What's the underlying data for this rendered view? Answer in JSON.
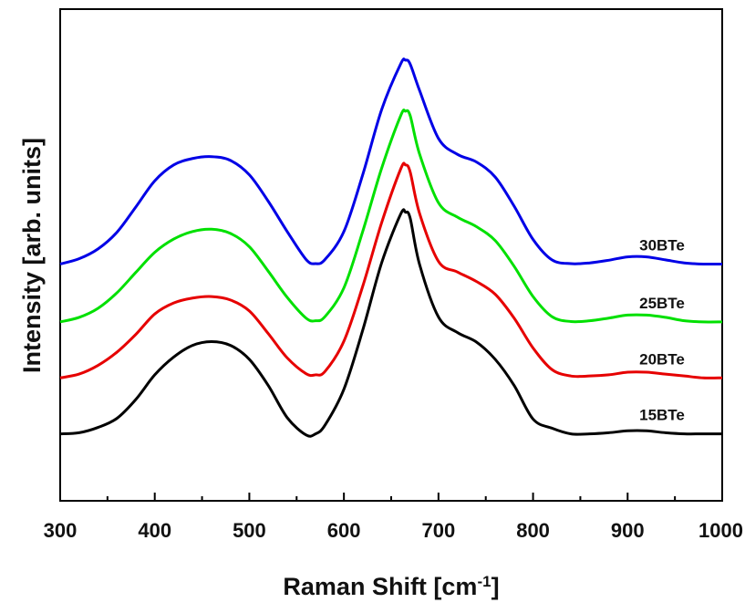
{
  "chart_data": {
    "type": "line",
    "title": "",
    "xlabel": "Raman Shift [cm",
    "xlabel_sup": "-1",
    "xlabel_suffix": "]",
    "ylabel": "Intensity [arb. units]",
    "xlim": [
      300,
      1000
    ],
    "ylim": [
      0,
      1.3
    ],
    "x_ticks": [
      300,
      400,
      500,
      600,
      700,
      800,
      900,
      1000
    ],
    "x_tick_labels": [
      "300",
      "400",
      "500",
      "600",
      "700",
      "800",
      "900",
      "1000"
    ],
    "y_tick_labels_shown": false,
    "grid": false,
    "legend": "inline labels at right",
    "series": [
      {
        "name": "15BTe",
        "color": "#000000",
        "x": [
          300,
          320,
          340,
          360,
          380,
          400,
          420,
          440,
          460,
          480,
          500,
          520,
          540,
          560,
          570,
          580,
          600,
          620,
          640,
          660,
          665,
          670,
          680,
          700,
          720,
          740,
          760,
          780,
          800,
          820,
          840,
          860,
          880,
          900,
          920,
          940,
          960,
          980,
          1000
        ],
        "y": [
          0.177,
          0.18,
          0.194,
          0.218,
          0.268,
          0.333,
          0.38,
          0.411,
          0.421,
          0.411,
          0.374,
          0.305,
          0.22,
          0.174,
          0.177,
          0.2,
          0.295,
          0.452,
          0.63,
          0.758,
          0.763,
          0.748,
          0.625,
          0.486,
          0.445,
          0.42,
          0.374,
          0.305,
          0.216,
          0.192,
          0.177,
          0.177,
          0.18,
          0.185,
          0.185,
          0.18,
          0.177,
          0.177,
          0.177
        ]
      },
      {
        "name": "20BTe",
        "color": "#e60000",
        "x": [
          300,
          320,
          340,
          360,
          380,
          400,
          420,
          440,
          460,
          480,
          500,
          520,
          540,
          560,
          570,
          580,
          600,
          620,
          640,
          660,
          665,
          670,
          680,
          700,
          720,
          740,
          760,
          780,
          800,
          820,
          840,
          860,
          880,
          900,
          920,
          940,
          960,
          980,
          1000
        ],
        "y": [
          0.325,
          0.335,
          0.358,
          0.393,
          0.44,
          0.494,
          0.523,
          0.536,
          0.54,
          0.531,
          0.502,
          0.442,
          0.378,
          0.336,
          0.333,
          0.342,
          0.422,
          0.568,
          0.736,
          0.877,
          0.888,
          0.87,
          0.76,
          0.633,
          0.605,
          0.58,
          0.546,
          0.483,
          0.404,
          0.347,
          0.33,
          0.33,
          0.333,
          0.34,
          0.34,
          0.335,
          0.33,
          0.325,
          0.325
        ]
      },
      {
        "name": "25BTe",
        "color": "#00e000",
        "x": [
          300,
          320,
          340,
          360,
          380,
          400,
          420,
          440,
          460,
          480,
          500,
          520,
          540,
          560,
          570,
          580,
          600,
          620,
          640,
          660,
          665,
          670,
          680,
          700,
          720,
          740,
          760,
          780,
          800,
          820,
          840,
          860,
          880,
          900,
          920,
          940,
          960,
          980,
          1000
        ],
        "y": [
          0.473,
          0.485,
          0.509,
          0.55,
          0.604,
          0.657,
          0.692,
          0.712,
          0.718,
          0.707,
          0.672,
          0.607,
          0.538,
          0.483,
          0.476,
          0.487,
          0.563,
          0.713,
          0.88,
          1.018,
          1.03,
          1.019,
          0.917,
          0.788,
          0.75,
          0.725,
          0.688,
          0.62,
          0.54,
          0.487,
          0.474,
          0.476,
          0.483,
          0.491,
          0.491,
          0.485,
          0.476,
          0.473,
          0.473
        ]
      },
      {
        "name": "30BTe",
        "color": "#0000e6",
        "x": [
          300,
          320,
          340,
          360,
          380,
          400,
          420,
          440,
          460,
          480,
          500,
          520,
          540,
          560,
          570,
          580,
          600,
          620,
          640,
          660,
          665,
          670,
          680,
          700,
          720,
          740,
          760,
          780,
          800,
          820,
          840,
          860,
          880,
          900,
          920,
          940,
          960,
          980,
          1000
        ],
        "y": [
          0.626,
          0.64,
          0.666,
          0.71,
          0.777,
          0.846,
          0.888,
          0.905,
          0.91,
          0.9,
          0.862,
          0.792,
          0.712,
          0.638,
          0.627,
          0.638,
          0.712,
          0.863,
          1.035,
          1.155,
          1.165,
          1.155,
          1.085,
          0.958,
          0.916,
          0.896,
          0.856,
          0.779,
          0.691,
          0.637,
          0.627,
          0.629,
          0.636,
          0.645,
          0.645,
          0.637,
          0.629,
          0.626,
          0.626
        ]
      }
    ]
  }
}
